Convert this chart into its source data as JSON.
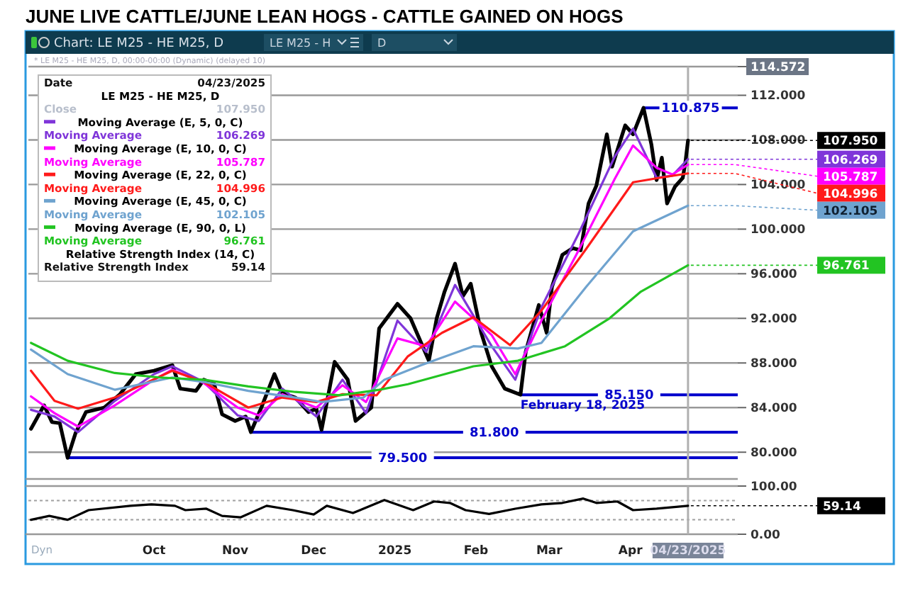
{
  "chart_data": [
    {
      "type": "line",
      "title": "JUNE LIVE CATTLE/JUNE LEAN HOGS - CATTLE GAINED ON HOGS",
      "subtitle": "Chart: LE M25 - HE M25, D",
      "xlim": [
        "2024-08-14",
        "2025-05-12"
      ],
      "ylim": [
        77.6,
        114.572
      ],
      "yticks": [
        {
          "value": 80,
          "label": "80.000"
        },
        {
          "value": 84,
          "label": "84.000"
        },
        {
          "value": 88,
          "label": "88.000"
        },
        {
          "value": 92,
          "label": "92.000"
        },
        {
          "value": 96,
          "label": "96.000"
        },
        {
          "value": 100,
          "label": "100.000"
        },
        {
          "value": 104,
          "label": "104.000"
        },
        {
          "value": 108,
          "label": "108.000"
        },
        {
          "value": 112,
          "label": "112.000"
        },
        {
          "value": 114.572,
          "label": "114.572"
        }
      ],
      "grid": "y",
      "tick_labels": "y",
      "legend": "top left",
      "ref_lines": [
        {
          "axis": "y",
          "value": 110.875,
          "label": "110.875",
          "color": "#0000cc"
        },
        {
          "axis": "y",
          "value": 85.15,
          "label": "85.150",
          "color": "#0000cc"
        },
        {
          "axis": "y",
          "value": 81.8,
          "label": "81.800",
          "color": "#0000cc"
        },
        {
          "axis": "y",
          "value": 79.5,
          "label": "79.500",
          "color": "#0000cc"
        },
        {
          "axis": "x",
          "value": "2025-04-23",
          "color": "#b0b0b0"
        }
      ],
      "annotations": [
        "LE M25 - H",
        "D",
        "* LE M25 - HE M25, D, 00:00-00:00 (Dynamic) (delayed 10)",
        "Date 04/23/2025",
        "LE M25 - HE M25, D",
        "Close 107.950",
        "Moving Average 106.269",
        "Moving Average 105.787",
        "Moving Average 104.996",
        "Moving Average 102.105",
        "Moving Average 96.761",
        "Relative Strength Index (14, C)",
        "Relative Strength Index 59.14",
        {
          "text": "February 18, 2025",
          "x": "2025-02-18",
          "y": 85.15
        },
        "Dyn"
      ],
      "series": [
        {
          "color": "#000000",
          "x": [
            "2024-08-15",
            "2024-08-20",
            "2024-08-23",
            "2024-08-26",
            "2024-08-29",
            "2024-09-01",
            "2024-09-05",
            "2024-09-12",
            "2024-09-18",
            "2024-09-24",
            "2024-10-01",
            "2024-10-08",
            "2024-10-11",
            "2024-10-17",
            "2024-10-20",
            "2024-10-24",
            "2024-10-27",
            "2024-11-01",
            "2024-11-05",
            "2024-11-07",
            "2024-11-11",
            "2024-11-16",
            "2024-11-19",
            "2024-11-24",
            "2024-11-29",
            "2024-12-02",
            "2024-12-04",
            "2024-12-09",
            "2024-12-14",
            "2024-12-17",
            "2024-12-23",
            "2024-12-26",
            "2025-01-02",
            "2025-01-07",
            "2025-01-14",
            "2025-01-17",
            "2025-01-20",
            "2025-01-24",
            "2025-01-27",
            "2025-01-30",
            "2025-02-03",
            "2025-02-07",
            "2025-02-12",
            "2025-02-18",
            "2025-02-20",
            "2025-02-25",
            "2025-02-28",
            "2025-03-02",
            "2025-03-06",
            "2025-03-10",
            "2025-03-13",
            "2025-03-16",
            "2025-03-19",
            "2025-03-23",
            "2025-03-25",
            "2025-03-30",
            "2025-04-02",
            "2025-04-06",
            "2025-04-09",
            "2025-04-11",
            "2025-04-13",
            "2025-04-15",
            "2025-04-18",
            "2025-04-21",
            "2025-04-22",
            "2025-04-23"
          ],
          "values": [
            82.1,
            84.2,
            82.7,
            82.6,
            79.5,
            81.7,
            83.6,
            84.0,
            85.2,
            87.0,
            87.3,
            87.8,
            85.7,
            85.5,
            86.5,
            86.1,
            83.4,
            82.8,
            83.2,
            81.8,
            84.0,
            87.0,
            85.3,
            84.9,
            83.6,
            83.9,
            82.0,
            88.1,
            86.5,
            82.8,
            84.0,
            91.1,
            93.3,
            92.0,
            88.2,
            92.0,
            94.4,
            96.9,
            94.0,
            95.1,
            90.7,
            87.7,
            85.7,
            85.15,
            89.0,
            93.2,
            90.7,
            94.8,
            97.7,
            98.3,
            98.1,
            102.3,
            103.9,
            108.5,
            105.6,
            109.3,
            108.5,
            110.875,
            107.6,
            104.4,
            106.4,
            102.3,
            103.8,
            104.6,
            106.0,
            107.95
          ],
          "value_labels": [
            null,
            null,
            null,
            null,
            null,
            null,
            null,
            null,
            null,
            null,
            null,
            null,
            null,
            null,
            null,
            null,
            null,
            null,
            null,
            null,
            null,
            null,
            null,
            null,
            null,
            null,
            null,
            null,
            null,
            null,
            null,
            null,
            null,
            null,
            null,
            null,
            null,
            null,
            null,
            null,
            null,
            null,
            null,
            null,
            null,
            null,
            null,
            null,
            null,
            null,
            null,
            null,
            null,
            null,
            null,
            null,
            null,
            null,
            null,
            null,
            null,
            null,
            null,
            null,
            null,
            "107.950"
          ]
        },
        {
          "name": "Moving Average (E, 5, 0, C)",
          "color": "#7f35d9",
          "x": [
            "2024-08-15",
            "2024-08-24",
            "2024-09-02",
            "2024-09-16",
            "2024-10-01",
            "2024-10-08",
            "2024-10-20",
            "2024-11-02",
            "2024-11-10",
            "2024-11-19",
            "2024-12-02",
            "2024-12-12",
            "2024-12-21",
            "2025-01-02",
            "2025-01-13",
            "2025-01-24",
            "2025-02-07",
            "2025-02-16",
            "2025-02-26",
            "2025-03-12",
            "2025-03-26",
            "2025-04-02",
            "2025-04-11",
            "2025-04-17",
            "2025-04-23"
          ],
          "values": [
            83.8,
            83.2,
            81.8,
            84.6,
            87.0,
            87.7,
            86.3,
            83.3,
            82.8,
            85.7,
            83.2,
            86.5,
            83.5,
            91.8,
            89.0,
            95.0,
            89.5,
            86.5,
            93.0,
            99.5,
            106.5,
            109.0,
            104.6,
            104.8,
            106.269
          ],
          "value_labels": [
            null,
            null,
            null,
            null,
            null,
            null,
            null,
            null,
            null,
            null,
            null,
            null,
            null,
            null,
            null,
            null,
            null,
            null,
            null,
            null,
            null,
            null,
            null,
            null,
            "106.269"
          ]
        },
        {
          "name": "Moving Average (E, 10, 0, C)",
          "color": "#ff00ff",
          "x": [
            "2024-08-15",
            "2024-08-24",
            "2024-09-02",
            "2024-09-16",
            "2024-10-01",
            "2024-10-08",
            "2024-10-20",
            "2024-11-02",
            "2024-11-10",
            "2024-11-19",
            "2024-12-02",
            "2024-12-12",
            "2024-12-21",
            "2025-01-02",
            "2025-01-13",
            "2025-01-24",
            "2025-02-07",
            "2025-02-16",
            "2025-02-26",
            "2025-03-12",
            "2025-03-26",
            "2025-04-02",
            "2025-04-11",
            "2025-04-17",
            "2025-04-23"
          ],
          "values": [
            85.0,
            83.5,
            82.3,
            84.2,
            86.5,
            87.4,
            86.2,
            84.0,
            83.3,
            85.2,
            84.0,
            86.0,
            84.5,
            90.2,
            89.5,
            93.5,
            90.5,
            87.0,
            91.8,
            98.0,
            104.5,
            107.5,
            105.5,
            104.9,
            105.787
          ],
          "value_labels": [
            null,
            null,
            null,
            null,
            null,
            null,
            null,
            null,
            null,
            null,
            null,
            null,
            null,
            null,
            null,
            null,
            null,
            null,
            null,
            null,
            null,
            null,
            null,
            null,
            "105.787"
          ]
        },
        {
          "name": "Moving Average (E, 22, 0, C)",
          "color": "#ff1a1a",
          "x": [
            "2024-08-15",
            "2024-08-24",
            "2024-09-02",
            "2024-09-16",
            "2024-10-08",
            "2024-10-20",
            "2024-11-06",
            "2024-11-19",
            "2024-12-02",
            "2024-12-12",
            "2024-12-25",
            "2025-01-06",
            "2025-01-19",
            "2025-01-31",
            "2025-02-14",
            "2025-02-26",
            "2025-03-15",
            "2025-04-02",
            "2025-04-12",
            "2025-04-23"
          ],
          "values": [
            87.3,
            84.6,
            83.9,
            84.9,
            87.3,
            86.3,
            84.0,
            84.9,
            84.5,
            85.2,
            85.1,
            88.6,
            90.7,
            92.1,
            89.6,
            92.7,
            98.2,
            104.2,
            104.6,
            104.996
          ],
          "value_labels": [
            null,
            null,
            null,
            null,
            null,
            null,
            null,
            null,
            null,
            null,
            null,
            null,
            null,
            null,
            null,
            null,
            null,
            null,
            null,
            "104.996"
          ]
        },
        {
          "name": "Moving Average (E, 45, 0, C)",
          "color": "#6fa3cf",
          "x": [
            "2024-08-15",
            "2024-08-29",
            "2024-09-16",
            "2024-10-08",
            "2024-10-20",
            "2024-11-06",
            "2024-11-24",
            "2024-12-04",
            "2024-12-20",
            "2024-12-28",
            "2025-01-11",
            "2025-01-31",
            "2025-02-17",
            "2025-02-26",
            "2025-03-15",
            "2025-04-02",
            "2025-04-23"
          ],
          "values": [
            89.2,
            87.0,
            85.6,
            86.7,
            86.3,
            85.5,
            84.9,
            84.5,
            84.9,
            86.5,
            87.8,
            89.5,
            89.3,
            89.8,
            94.8,
            99.8,
            102.105
          ],
          "value_labels": [
            null,
            null,
            null,
            null,
            null,
            null,
            null,
            null,
            null,
            null,
            null,
            null,
            null,
            null,
            null,
            null,
            "102.105"
          ]
        },
        {
          "name": "Moving Average (E, 90, 0, L)",
          "color": "#22c422",
          "x": [
            "2024-08-15",
            "2024-08-29",
            "2024-09-16",
            "2024-10-03",
            "2024-10-20",
            "2024-11-06",
            "2024-11-24",
            "2024-12-11",
            "2024-12-26",
            "2025-01-06",
            "2025-01-31",
            "2025-02-17",
            "2025-03-07",
            "2025-03-24",
            "2025-04-05",
            "2025-04-23"
          ],
          "values": [
            89.8,
            88.2,
            87.1,
            86.7,
            86.5,
            85.9,
            85.4,
            85.1,
            85.6,
            86.1,
            87.7,
            88.2,
            89.5,
            92.0,
            94.4,
            96.761
          ],
          "value_labels": [
            null,
            null,
            null,
            null,
            null,
            null,
            null,
            null,
            null,
            null,
            null,
            null,
            null,
            null,
            null,
            "96.761"
          ]
        }
      ]
    },
    {
      "type": "line",
      "xlim": [
        "2024-08-14",
        "2025-05-12"
      ],
      "ylim": [
        0,
        100
      ],
      "yticks": [
        {
          "value": 0,
          "label": "0.00"
        },
        {
          "value": 100,
          "label": "100.00"
        }
      ],
      "xticks": [
        {
          "value": "2024-10-01",
          "label": "Oct"
        },
        {
          "value": "2024-11-01",
          "label": "Nov"
        },
        {
          "value": "2024-12-01",
          "label": "Dec"
        },
        {
          "value": "2025-01-01",
          "label": "2025"
        },
        {
          "value": "2025-02-01",
          "label": "Feb"
        },
        {
          "value": "2025-03-01",
          "label": "Mar"
        },
        {
          "value": "2025-04-01",
          "label": "Apr"
        },
        {
          "value": "2025-04-23",
          "label": "04/23/2025"
        }
      ],
      "ref_lines": [
        {
          "axis": "y",
          "value": 70,
          "color": "#a0a0a0",
          "line_style": "dotted"
        },
        {
          "axis": "y",
          "value": 30,
          "color": "#a0a0a0",
          "line_style": "dotted"
        },
        {
          "axis": "x",
          "value": "2025-04-23",
          "color": "#b0b0b0"
        }
      ],
      "series": [
        {
          "color": "#000000",
          "x": [
            "2024-08-15",
            "2024-08-22",
            "2024-08-29",
            "2024-09-06",
            "2024-09-22",
            "2024-09-30",
            "2024-10-09",
            "2024-10-13",
            "2024-10-21",
            "2024-10-27",
            "2024-11-03",
            "2024-11-13",
            "2024-11-23",
            "2024-12-01",
            "2024-12-06",
            "2024-12-16",
            "2024-12-28",
            "2025-01-08",
            "2025-01-16",
            "2025-01-22",
            "2025-01-28",
            "2025-02-06",
            "2025-02-16",
            "2025-02-26",
            "2025-03-06",
            "2025-03-14",
            "2025-03-19",
            "2025-03-27",
            "2025-04-02",
            "2025-04-11",
            "2025-04-23"
          ],
          "values": [
            30,
            38,
            30,
            50,
            59,
            62,
            59,
            50,
            53,
            38,
            35,
            59,
            50,
            41,
            59,
            44,
            71,
            50,
            68,
            65,
            50,
            42,
            53,
            62,
            65,
            74,
            65,
            68,
            50,
            53,
            59.14
          ],
          "value_labels": [
            null,
            null,
            null,
            null,
            null,
            null,
            null,
            null,
            null,
            null,
            null,
            null,
            null,
            null,
            null,
            null,
            null,
            null,
            null,
            null,
            null,
            null,
            null,
            null,
            null,
            null,
            null,
            null,
            null,
            null,
            "59.14"
          ]
        }
      ]
    }
  ]
}
